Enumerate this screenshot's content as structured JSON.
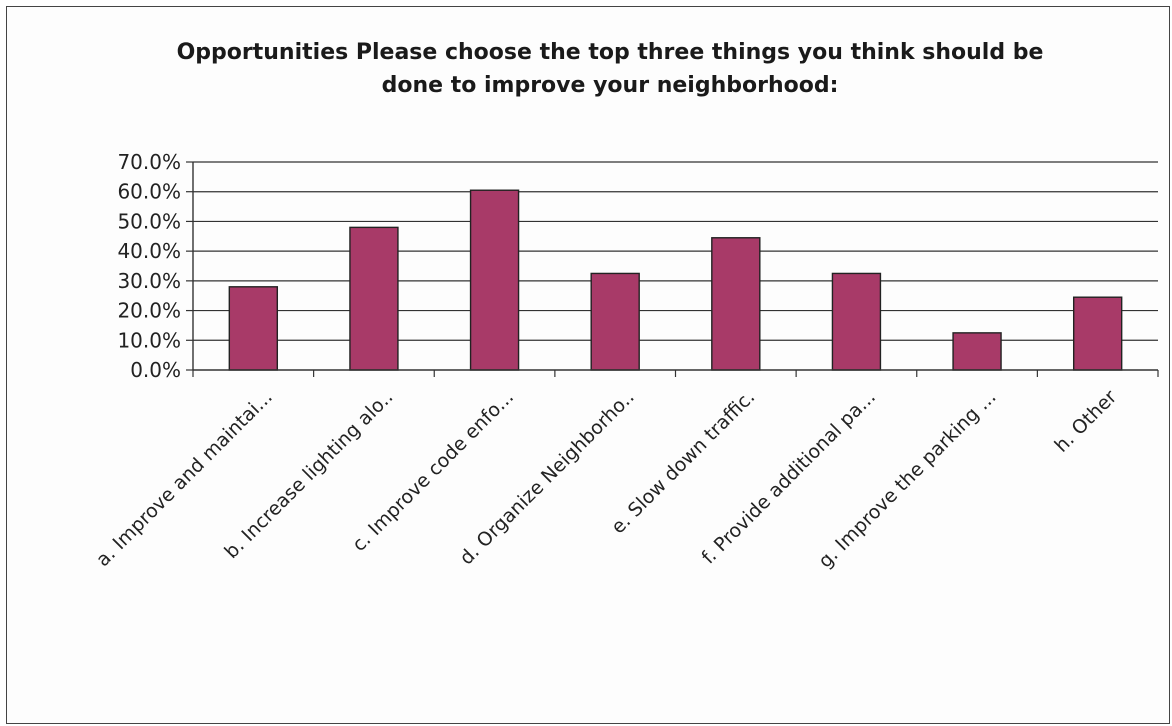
{
  "chart_data": {
    "type": "bar",
    "title": "Opportunities   Please choose the top three things you think should be\ndone to improve your neighborhood:",
    "xlabel": "",
    "ylabel": "",
    "categories": [
      "a. Improve and maintai...",
      "b. Increase lighting alo..",
      "c. Improve code enfo...",
      "d. Organize Neighborho..",
      "e. Slow down traffic.",
      "f. Provide additional pa...",
      "g. Improve the parking ...",
      "h. Other"
    ],
    "values": [
      28.0,
      48.0,
      60.5,
      32.5,
      44.5,
      32.5,
      12.5,
      24.5
    ],
    "y_ticks": [
      "0.0%",
      "10.0%",
      "20.0%",
      "30.0%",
      "40.0%",
      "50.0%",
      "60.0%",
      "70.0%"
    ],
    "ylim": [
      0,
      70
    ],
    "grid": true,
    "bar_color": "#a83a68",
    "legend": "none"
  }
}
